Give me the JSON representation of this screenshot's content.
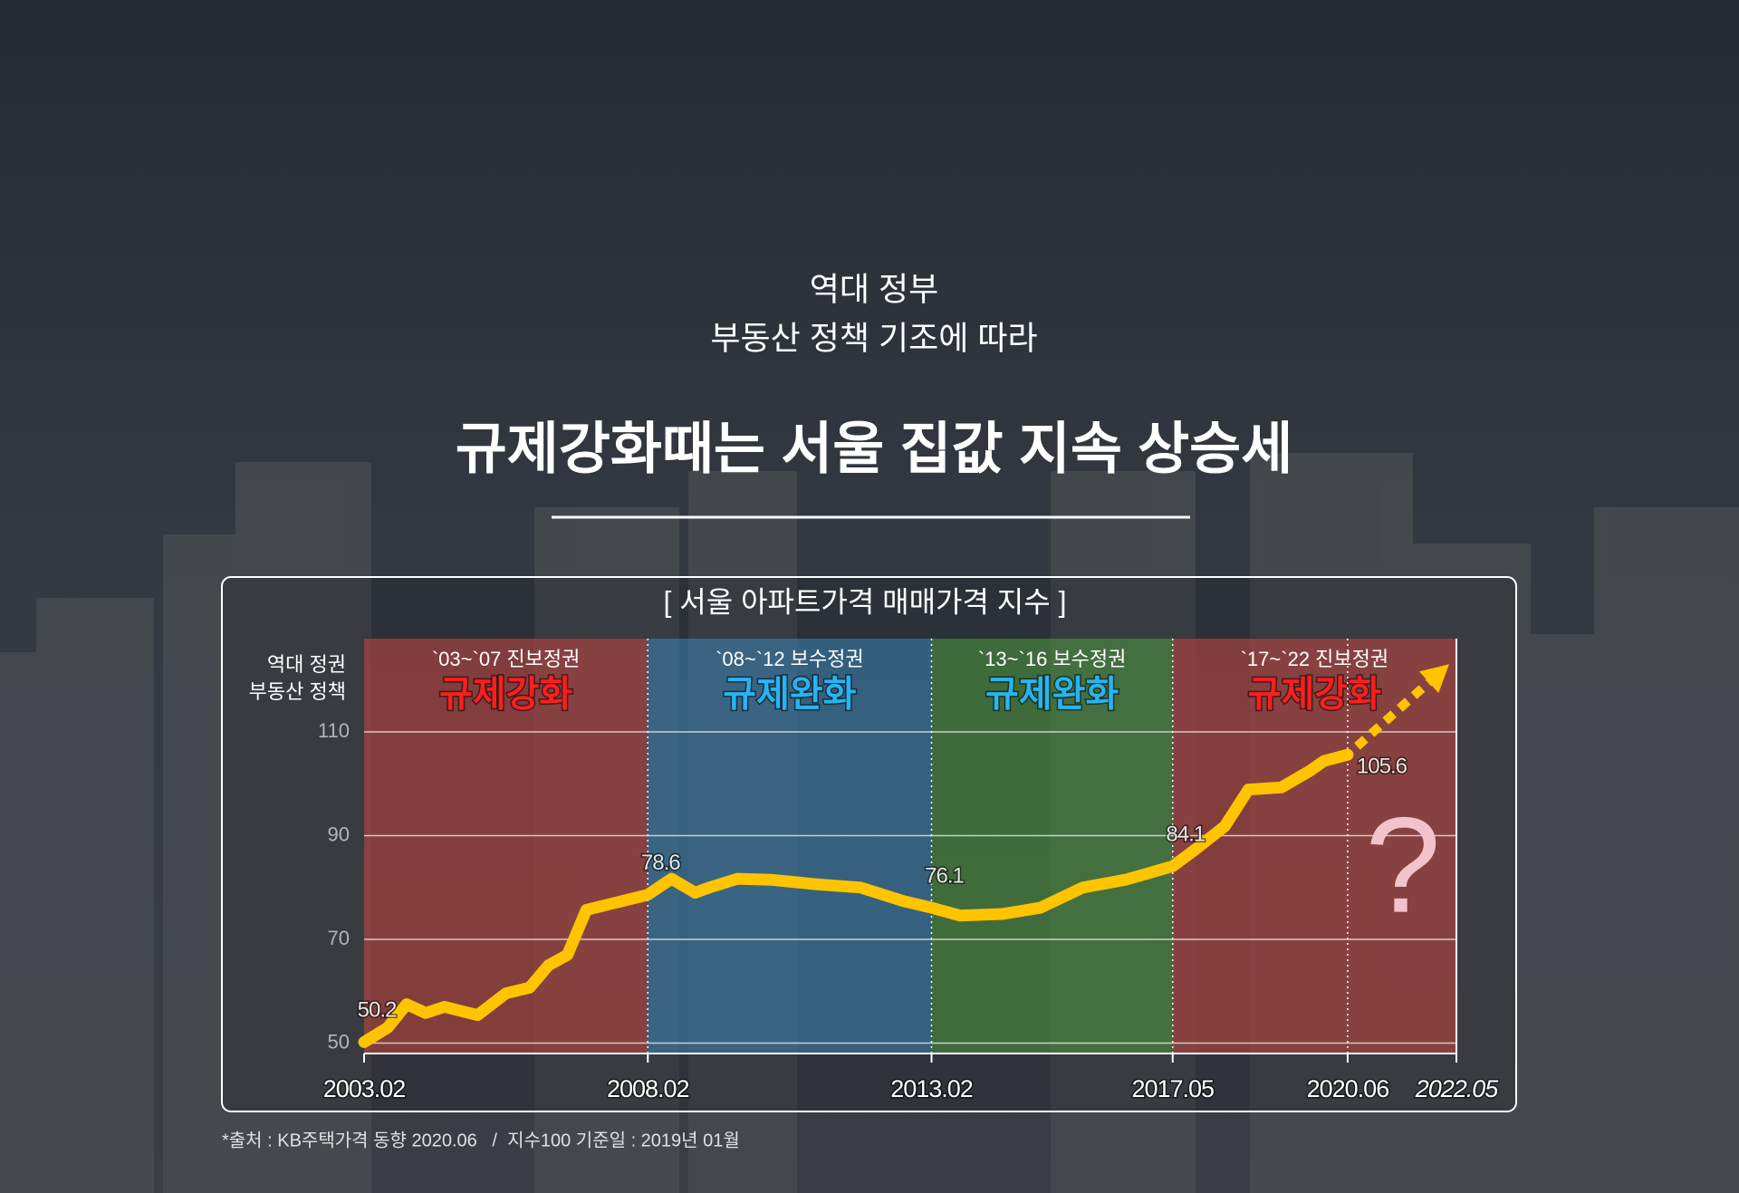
{
  "header": {
    "kicker": [
      "역대 정부",
      "부동산 정책 기조에 따라"
    ],
    "title": "규제강화때는 서울 집값 지속 상승세"
  },
  "chart_data": {
    "type": "line",
    "title": "[ 서울 아파트가격 매매가격 지수 ]",
    "row_label": [
      "역대 정권",
      "부동산 정책"
    ],
    "periods": [
      {
        "start": "2003.02",
        "end": "2008.02",
        "government": "`03~`07 진보정권",
        "policy": "규제강화",
        "color": "#c8473f",
        "text_color": "#ff1e1e"
      },
      {
        "start": "2008.02",
        "end": "2013.02",
        "government": "`08~`12 보수정권",
        "policy": "규제완화",
        "color": "#3d86b8",
        "text_color": "#27b4f2"
      },
      {
        "start": "2013.02",
        "end": "2017.05",
        "government": "`13~`16 보수정권",
        "policy": "규제완화",
        "color": "#4e9a3f",
        "text_color": "#27b4f2"
      },
      {
        "start": "2017.05",
        "end": "2022.05",
        "government": "`17~`22 진보정권",
        "policy": "규제강화",
        "color": "#c8473f",
        "text_color": "#ff1e1e"
      }
    ],
    "x": [
      "2003.02",
      "2003.07",
      "2003.11",
      "2004.03",
      "2004.07",
      "2005.02",
      "2005.08",
      "2006.01",
      "2006.05",
      "2006.09",
      "2007.01",
      "2007.06",
      "2008.02",
      "2008.07",
      "2008.12",
      "2009.03",
      "2009.09",
      "2010.04",
      "2011.02",
      "2011.11",
      "2012.08",
      "2013.02",
      "2013.08",
      "2014.05",
      "2015.01",
      "2015.10",
      "2016.07",
      "2017.05",
      "2017.10",
      "2018.04",
      "2018.09",
      "2019.04",
      "2019.10",
      "2020.01",
      "2020.06"
    ],
    "values": [
      50.2,
      53,
      57.5,
      55.8,
      57,
      55.4,
      59.6,
      60.7,
      65,
      67,
      75.7,
      76.8,
      78.6,
      81.7,
      79,
      80,
      81.7,
      81.5,
      80.6,
      80,
      77.4,
      76.1,
      74.6,
      74.9,
      76.1,
      80,
      81.5,
      84.1,
      87.5,
      91.8,
      98.9,
      99.3,
      102.5,
      104.4,
      105.6
    ],
    "value_labels": [
      "50.2",
      null,
      null,
      null,
      null,
      null,
      null,
      null,
      null,
      null,
      null,
      null,
      "78.6",
      null,
      null,
      null,
      null,
      null,
      null,
      null,
      null,
      "76.1",
      null,
      null,
      null,
      null,
      null,
      "84.1",
      null,
      null,
      null,
      null,
      null,
      null,
      "105.6"
    ],
    "color": "#ffc400",
    "xlim": [
      "2003.02",
      "2022.05"
    ],
    "xticks": [
      "2003.02",
      "2008.02",
      "2013.02",
      "2017.05",
      "2020.06",
      "2022.05"
    ],
    "ylim": [
      48,
      128
    ],
    "yticks": [
      50,
      70,
      90,
      110
    ],
    "grid": true,
    "annotation": "?"
  },
  "footnote": "*출처 : KB주택가격 동향 2020.06   /  지수100 기준일 : 2019년 01월"
}
